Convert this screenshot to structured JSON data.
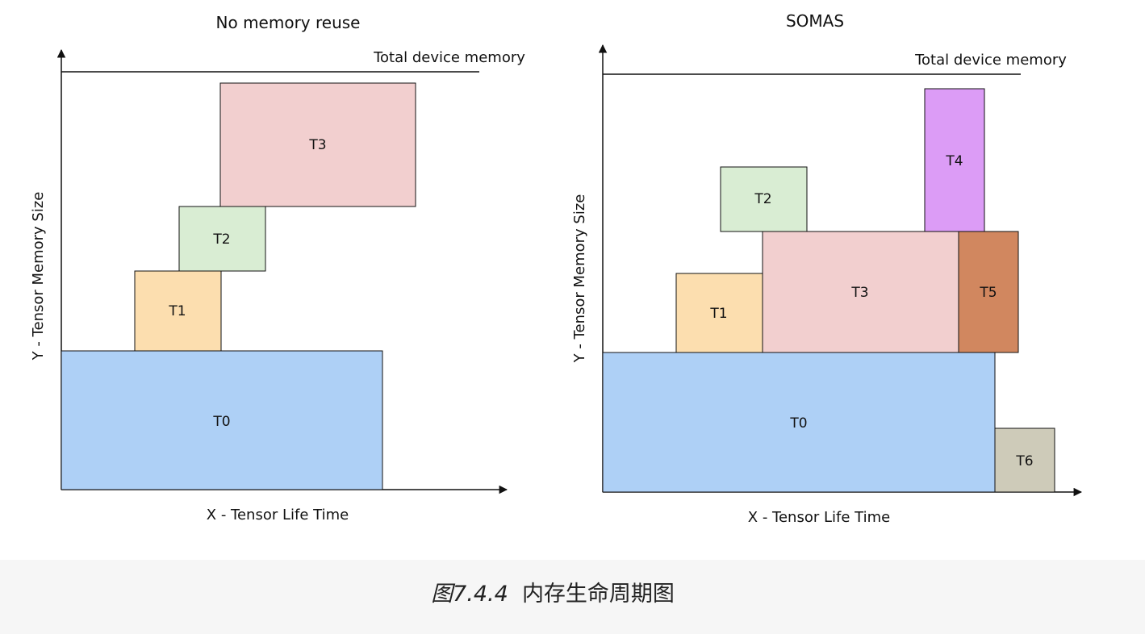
{
  "colors": {
    "T0": "#aed0f6",
    "T1": "#fcdeaf",
    "T2": "#d9edd3",
    "T3": "#f2cfcf",
    "T4": "#dc9cf6",
    "T5": "#d1875f",
    "T6": "#cecbb9",
    "outline": "#111111",
    "caption_band": "#f6f6f6"
  },
  "panels": [
    {
      "title": "No memory reuse",
      "capacity_label": "Total device memory",
      "x_axis_label": "X - Tensor Life Time",
      "y_axis_label": "Y - Tensor Memory Size",
      "tensors": [
        {
          "label": "T0",
          "color": "T0"
        },
        {
          "label": "T1",
          "color": "T1"
        },
        {
          "label": "T2",
          "color": "T2"
        },
        {
          "label": "T3",
          "color": "T3"
        }
      ]
    },
    {
      "title": "SOMAS",
      "capacity_label": "Total device memory",
      "x_axis_label": "X - Tensor Life Time",
      "y_axis_label": "Y - Tensor Memory Size",
      "tensors": [
        {
          "label": "T0",
          "color": "T0"
        },
        {
          "label": "T1",
          "color": "T1"
        },
        {
          "label": "T2",
          "color": "T2"
        },
        {
          "label": "T3",
          "color": "T3"
        },
        {
          "label": "T4",
          "color": "T4"
        },
        {
          "label": "T5",
          "color": "T5"
        },
        {
          "label": "T6",
          "color": "T6"
        }
      ]
    }
  ],
  "caption": {
    "number": "图7.4.4",
    "text": "内存生命周期图"
  }
}
